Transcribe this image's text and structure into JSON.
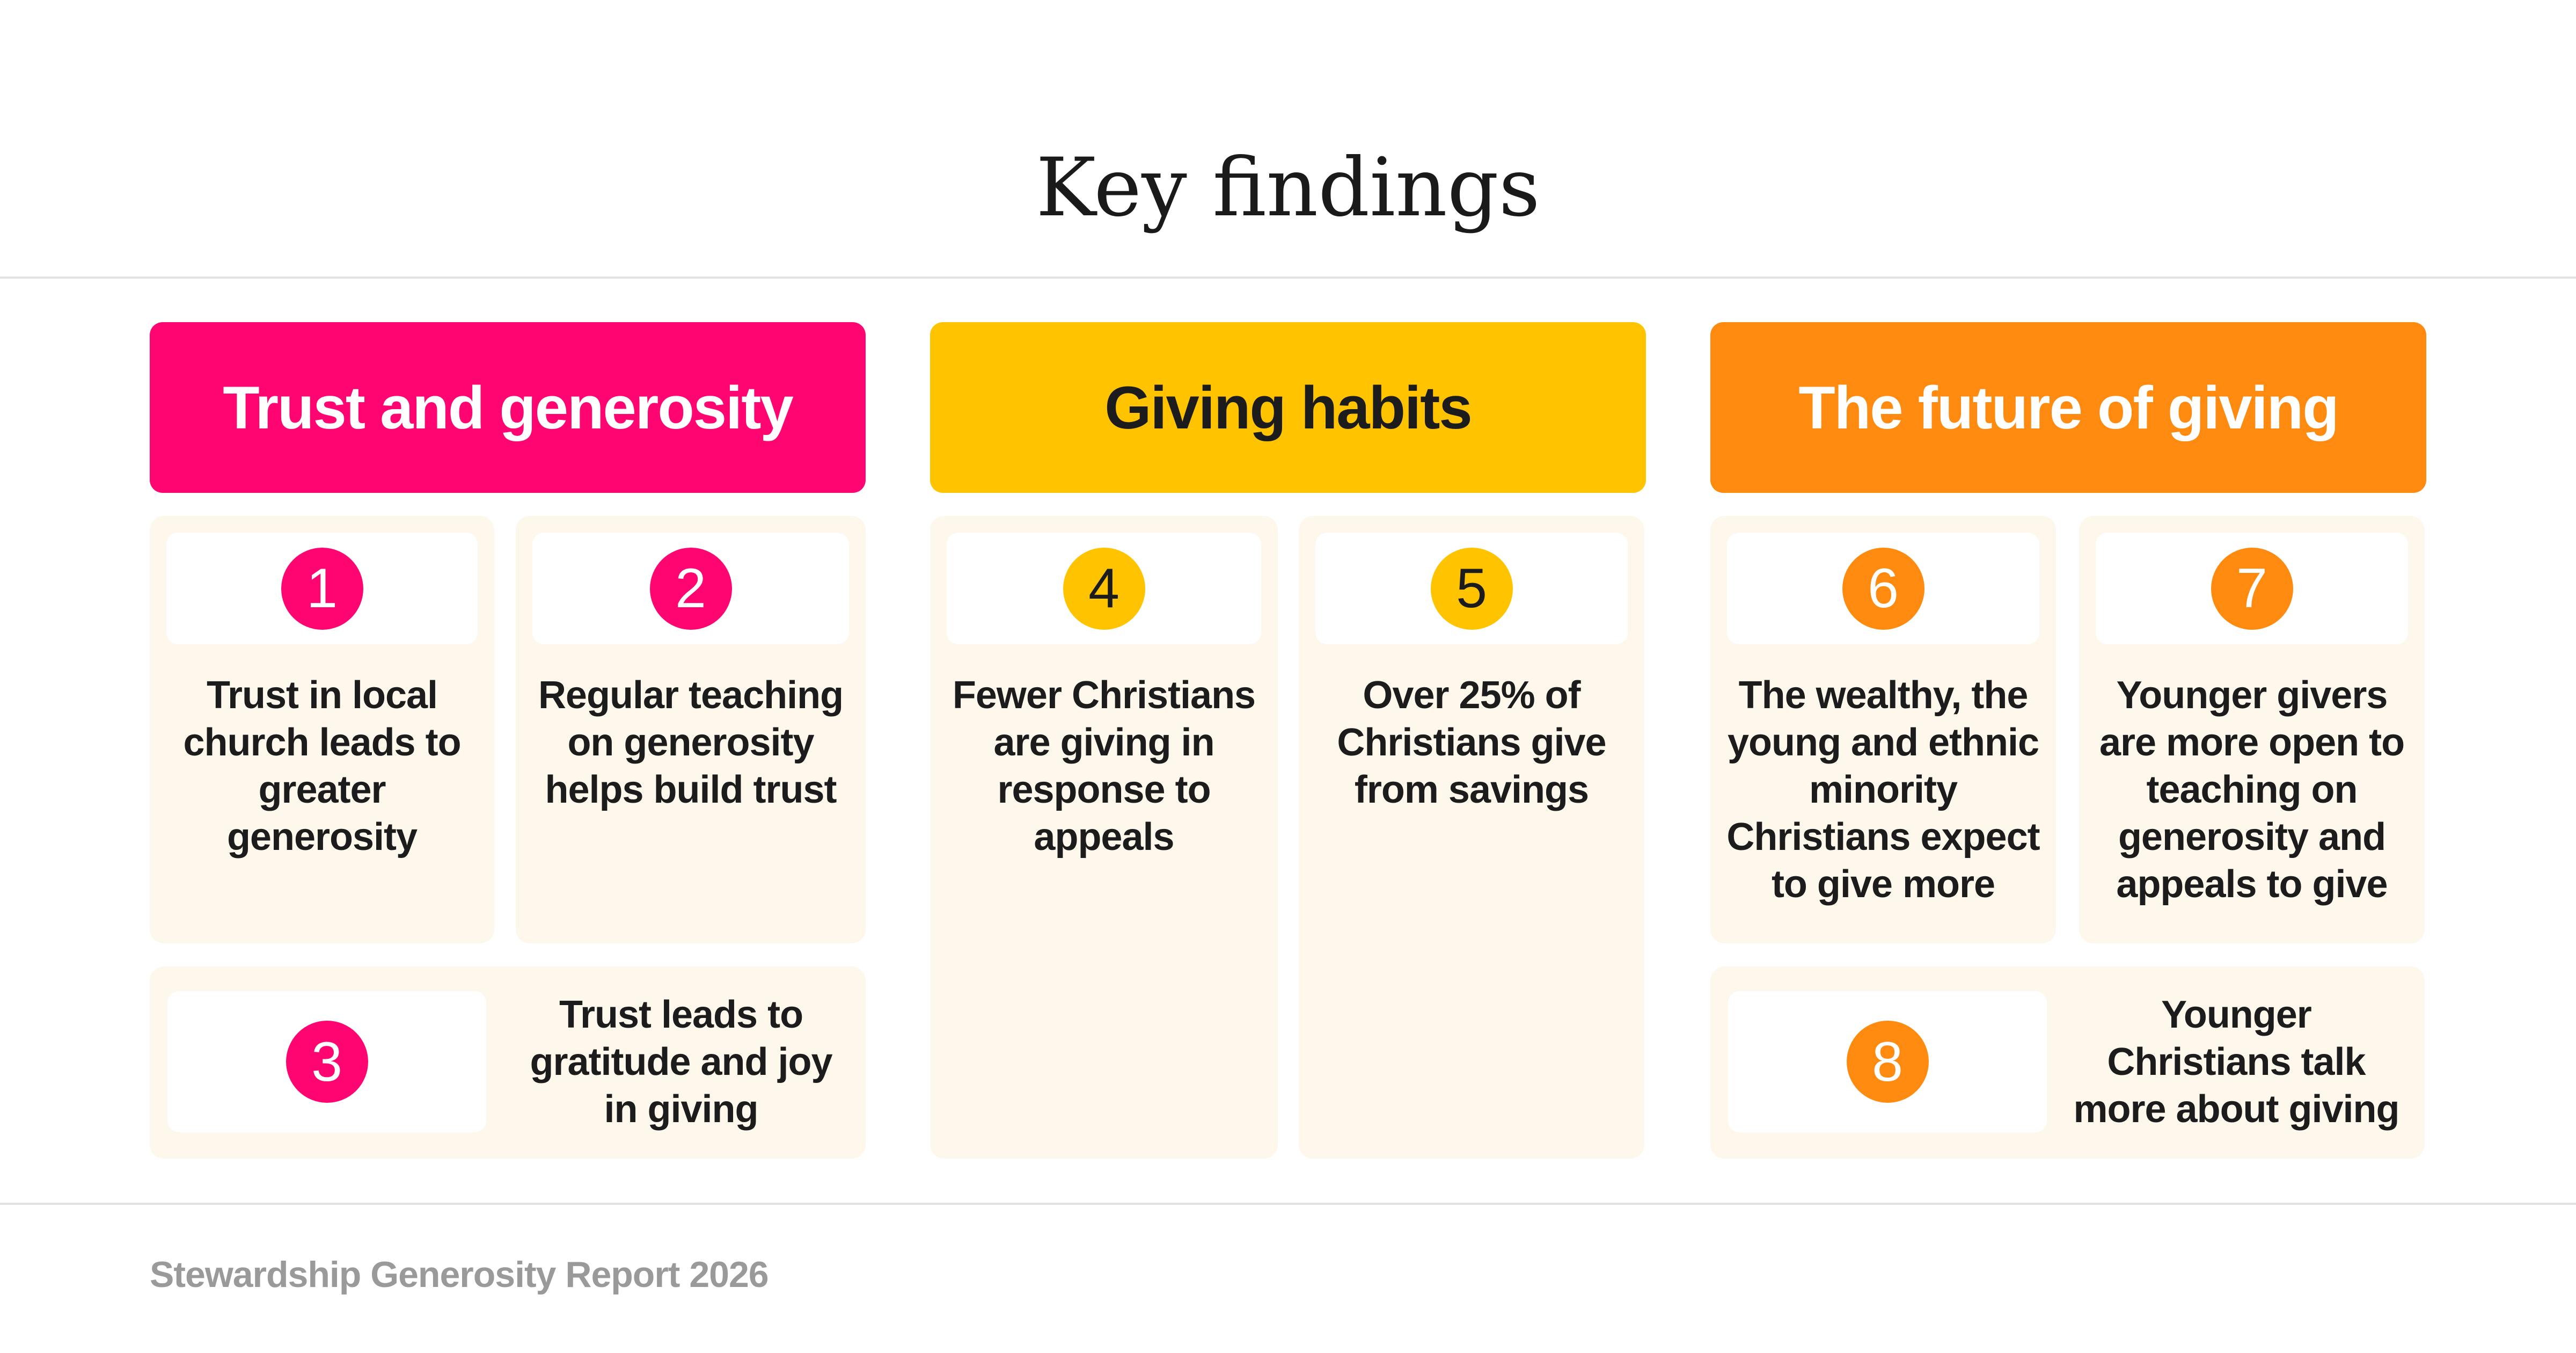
{
  "title": "Key findings",
  "colors": {
    "pink": "#FF0572",
    "yellow": "#FFC300",
    "orange": "#FF8A10",
    "cream": "#FEF8EC"
  },
  "sections": [
    {
      "label": "Trust and generosity"
    },
    {
      "label": "Giving habits"
    },
    {
      "label": "The future of giving"
    }
  ],
  "findings": [
    {
      "number": "1",
      "text": "Trust in local church leads to greater generosity"
    },
    {
      "number": "2",
      "text": "Regular teaching on generosity helps build trust"
    },
    {
      "number": "3",
      "text": "Trust leads to gratitude and joy in giving"
    },
    {
      "number": "4",
      "text": "Fewer Christians are giving in response to appeals"
    },
    {
      "number": "5",
      "text": "Over 25% of Christians give from savings"
    },
    {
      "number": "6",
      "text": "The wealthy, the young and ethnic minority Christians expect to give more"
    },
    {
      "number": "7",
      "text": "Younger givers are more open to teaching on generosity and appeals to give"
    },
    {
      "number": "8",
      "text": "Younger Christians talk more about giving"
    }
  ],
  "footer": "Stewardship Generosity Report 2026"
}
